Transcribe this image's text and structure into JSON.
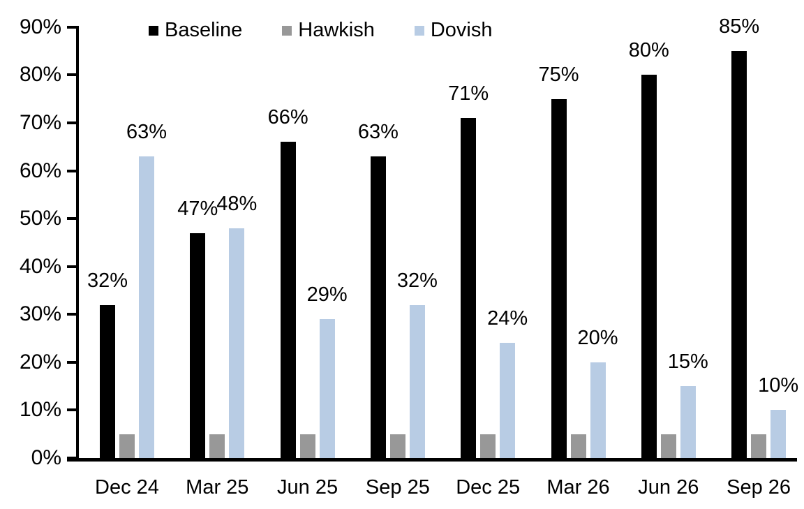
{
  "chart_data": {
    "type": "bar",
    "title": "",
    "xlabel": "",
    "ylabel": "",
    "ylim": [
      0,
      90
    ],
    "ytick_step": 10,
    "ytick_labels": [
      "0%",
      "10%",
      "20%",
      "30%",
      "40%",
      "50%",
      "60%",
      "70%",
      "80%",
      "90%"
    ],
    "grid": false,
    "legend_position": "top",
    "categories": [
      "Dec 24",
      "Mar 25",
      "Jun 25",
      "Sep 25",
      "Dec 25",
      "Mar 26",
      "Jun 26",
      "Sep 26"
    ],
    "series": [
      {
        "name": "Baseline",
        "color": "#000000",
        "show_labels": true,
        "values": [
          32,
          47,
          66,
          63,
          71,
          75,
          80,
          85
        ],
        "labels": [
          "32%",
          "47%",
          "66%",
          "63%",
          "71%",
          "75%",
          "80%",
          "85%"
        ]
      },
      {
        "name": "Hawkish",
        "color": "#989898",
        "show_labels": false,
        "values": [
          5,
          5,
          5,
          5,
          5,
          5,
          5,
          5
        ],
        "labels": []
      },
      {
        "name": "Dovish",
        "color": "#b8cce4",
        "show_labels": true,
        "values": [
          63,
          48,
          29,
          32,
          24,
          20,
          15,
          10
        ],
        "labels": [
          "63%",
          "48%",
          "29%",
          "32%",
          "24%",
          "20%",
          "15%",
          "10%"
        ]
      }
    ]
  }
}
